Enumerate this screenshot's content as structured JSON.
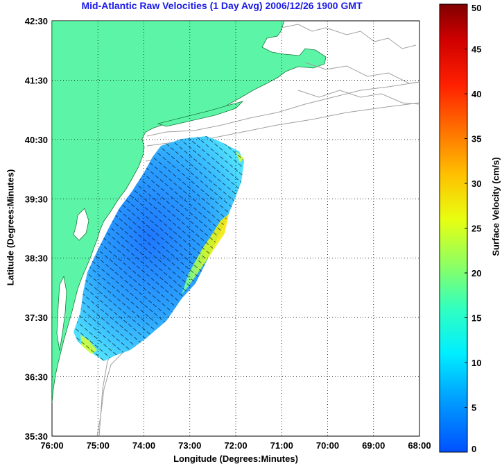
{
  "title": "Mid-Atlantic Raw Velocities (1 Day Avg) 2006/12/26 1900 GMT",
  "map": {
    "xlabel": "Longitude (Degrees:Minutes)",
    "ylabel": "Latitude (Degrees:Minutes)",
    "x_ticks": [
      "76:00",
      "75:00",
      "74:00",
      "73:00",
      "72:00",
      "71:00",
      "70:00",
      "69:00",
      "68:00"
    ],
    "y_ticks": [
      "42:30",
      "41:30",
      "40:30",
      "39:30",
      "38:30",
      "37:30",
      "36:30",
      "35:30"
    ],
    "grid": "dotted",
    "colors": {
      "land": "#5cf5a8",
      "ocean": "#ffffff",
      "bathymetry": "#a0a0a0",
      "vectors": "#000000"
    }
  },
  "colorbar": {
    "label": "Surface Velocity (cm/s)",
    "ticks": [
      "0",
      "5",
      "10",
      "15",
      "20",
      "25",
      "30",
      "35",
      "40",
      "45",
      "50"
    ],
    "range": [
      0,
      50
    ]
  }
}
